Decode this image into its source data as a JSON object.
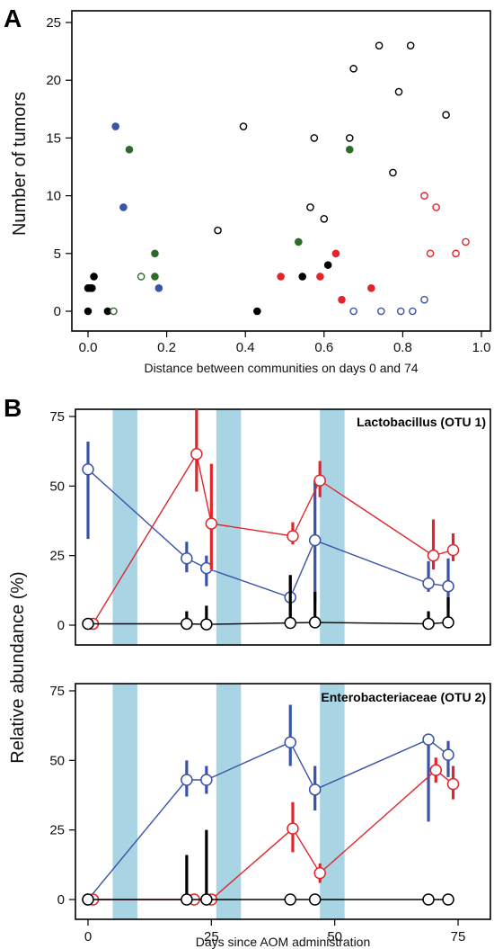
{
  "chart_data": [
    {
      "type": "scatter",
      "panel_label": "A",
      "xlabel": "Distance between communities on days 0 and 74",
      "ylabel": "Number of tumors",
      "xlim": [
        -0.02,
        1.0
      ],
      "ylim": [
        0,
        25
      ],
      "xticks": [
        "0.0",
        "0.2",
        "0.4",
        "0.6",
        "0.8",
        "1.0"
      ],
      "yticks": [
        "0",
        "5",
        "10",
        "15",
        "20",
        "25"
      ],
      "grid": false,
      "colors": {
        "black": "#000000",
        "green": "#2e6b2a",
        "blue": "#3a53a8",
        "red": "#e0262b"
      },
      "points": [
        {
          "x": 0.0,
          "y": 2,
          "color": "black",
          "filled": true
        },
        {
          "x": 0.005,
          "y": 2,
          "color": "black",
          "filled": true
        },
        {
          "x": 0.01,
          "y": 2,
          "color": "black",
          "filled": true
        },
        {
          "x": 0.015,
          "y": 3,
          "color": "black",
          "filled": true
        },
        {
          "x": 0.0,
          "y": 0,
          "color": "black",
          "filled": true
        },
        {
          "x": 0.05,
          "y": 0,
          "color": "black",
          "filled": true
        },
        {
          "x": 0.065,
          "y": 0,
          "color": "green",
          "filled": false
        },
        {
          "x": 0.07,
          "y": 16,
          "color": "blue",
          "filled": true
        },
        {
          "x": 0.09,
          "y": 9,
          "color": "blue",
          "filled": true
        },
        {
          "x": 0.105,
          "y": 14,
          "color": "green",
          "filled": true
        },
        {
          "x": 0.135,
          "y": 3,
          "color": "green",
          "filled": false
        },
        {
          "x": 0.17,
          "y": 5,
          "color": "green",
          "filled": true
        },
        {
          "x": 0.17,
          "y": 3,
          "color": "green",
          "filled": true
        },
        {
          "x": 0.18,
          "y": 2,
          "color": "blue",
          "filled": true
        },
        {
          "x": 0.33,
          "y": 7,
          "color": "black",
          "filled": false
        },
        {
          "x": 0.395,
          "y": 16,
          "color": "black",
          "filled": false
        },
        {
          "x": 0.43,
          "y": 0,
          "color": "black",
          "filled": true
        },
        {
          "x": 0.49,
          "y": 3,
          "color": "red",
          "filled": true
        },
        {
          "x": 0.535,
          "y": 6,
          "color": "green",
          "filled": true
        },
        {
          "x": 0.545,
          "y": 3,
          "color": "black",
          "filled": true
        },
        {
          "x": 0.565,
          "y": 9,
          "color": "black",
          "filled": false
        },
        {
          "x": 0.575,
          "y": 15,
          "color": "black",
          "filled": false
        },
        {
          "x": 0.59,
          "y": 3,
          "color": "red",
          "filled": true
        },
        {
          "x": 0.6,
          "y": 8,
          "color": "black",
          "filled": false
        },
        {
          "x": 0.61,
          "y": 4,
          "color": "black",
          "filled": true
        },
        {
          "x": 0.63,
          "y": 5,
          "color": "red",
          "filled": true
        },
        {
          "x": 0.645,
          "y": 1,
          "color": "red",
          "filled": true
        },
        {
          "x": 0.665,
          "y": 15,
          "color": "black",
          "filled": false
        },
        {
          "x": 0.665,
          "y": 14,
          "color": "green",
          "filled": true
        },
        {
          "x": 0.675,
          "y": 21,
          "color": "black",
          "filled": false
        },
        {
          "x": 0.675,
          "y": 0,
          "color": "blue",
          "filled": false
        },
        {
          "x": 0.72,
          "y": 2,
          "color": "red",
          "filled": true
        },
        {
          "x": 0.74,
          "y": 23,
          "color": "black",
          "filled": false
        },
        {
          "x": 0.745,
          "y": 0,
          "color": "blue",
          "filled": false
        },
        {
          "x": 0.775,
          "y": 12,
          "color": "black",
          "filled": false
        },
        {
          "x": 0.79,
          "y": 19,
          "color": "black",
          "filled": false
        },
        {
          "x": 0.795,
          "y": 0,
          "color": "blue",
          "filled": false
        },
        {
          "x": 0.82,
          "y": 23,
          "color": "black",
          "filled": false
        },
        {
          "x": 0.825,
          "y": 0,
          "color": "blue",
          "filled": false
        },
        {
          "x": 0.855,
          "y": 10,
          "color": "red",
          "filled": false
        },
        {
          "x": 0.855,
          "y": 1,
          "color": "blue",
          "filled": false
        },
        {
          "x": 0.87,
          "y": 5,
          "color": "red",
          "filled": false
        },
        {
          "x": 0.885,
          "y": 9,
          "color": "red",
          "filled": false
        },
        {
          "x": 0.91,
          "y": 17,
          "color": "black",
          "filled": false
        },
        {
          "x": 0.935,
          "y": 5,
          "color": "red",
          "filled": false
        },
        {
          "x": 0.96,
          "y": 6,
          "color": "red",
          "filled": false
        }
      ]
    },
    {
      "type": "line",
      "panel_label": "B",
      "title": "Lactobacillus (OTU 1)",
      "ylabel": "Relative abundance (%)",
      "xlim": [
        -2,
        75
      ],
      "ylim": [
        -4,
        77
      ],
      "xticks": [
        "0",
        "25",
        "50",
        "75"
      ],
      "yticks": [
        "0",
        "25",
        "50",
        "75"
      ],
      "shaded_intervals": [
        [
          5,
          10
        ],
        [
          26,
          31
        ],
        [
          47,
          52
        ]
      ],
      "colors": {
        "blue": "#3a53a8",
        "red": "#e0262b",
        "black": "#000000",
        "shade": "#a8d4e4"
      },
      "series": [
        {
          "color": "blue",
          "x": [
            0,
            20,
            24,
            41,
            46,
            69,
            73
          ],
          "y": [
            56,
            24,
            20.5,
            10,
            30.5,
            15,
            14
          ],
          "err_low": [
            31,
            19,
            14,
            3,
            8,
            12,
            6
          ],
          "err_high": [
            66,
            30,
            25,
            18,
            52,
            23,
            24
          ]
        },
        {
          "color": "red",
          "x": [
            1,
            22,
            25,
            41.5,
            47,
            70,
            74
          ],
          "y": [
            0.5,
            61.5,
            36.5,
            32,
            52,
            25,
            27
          ],
          "err_low": [
            0,
            48,
            20,
            29,
            46,
            20,
            23
          ],
          "err_high": [
            1,
            78,
            58,
            37,
            59,
            38,
            33
          ]
        },
        {
          "color": "black",
          "x": [
            0,
            20,
            24,
            41,
            46,
            69,
            73
          ],
          "y": [
            0.5,
            0.5,
            0.3,
            0.8,
            1,
            0.5,
            1
          ],
          "err_low": [
            0,
            0,
            0,
            0,
            0,
            0,
            0
          ],
          "err_high": [
            1,
            5,
            7,
            18,
            12,
            5,
            10
          ]
        }
      ]
    },
    {
      "type": "line",
      "title": "Enterobacteriaceae (OTU 2)",
      "xlabel": "Days since AOM administration",
      "xlim": [
        -2,
        75
      ],
      "ylim": [
        -4,
        77
      ],
      "xticks": [
        "0",
        "25",
        "50",
        "75"
      ],
      "yticks": [
        "0",
        "25",
        "50",
        "75"
      ],
      "shaded_intervals": [
        [
          5,
          10
        ],
        [
          26,
          31
        ],
        [
          47,
          52
        ]
      ],
      "colors": {
        "blue": "#3a53a8",
        "red": "#e0262b",
        "black": "#000000",
        "shade": "#a8d4e4"
      },
      "series": [
        {
          "color": "blue",
          "x": [
            0,
            20,
            24,
            41,
            46,
            69,
            73
          ],
          "y": [
            0,
            43,
            43,
            56.5,
            39.5,
            57.5,
            52
          ],
          "err_low": [
            0,
            37,
            38,
            48,
            32,
            28,
            44
          ],
          "err_high": [
            0,
            50,
            48,
            70,
            48,
            59,
            57
          ]
        },
        {
          "color": "red",
          "x": [
            1,
            21.5,
            25,
            41.5,
            47,
            70.5,
            74
          ],
          "y": [
            0,
            0,
            0,
            25.5,
            9.5,
            46.5,
            41.5
          ],
          "err_low": [
            0,
            0,
            0,
            17,
            6,
            42,
            36
          ],
          "err_high": [
            0,
            0,
            0,
            35,
            13,
            51,
            48
          ]
        },
        {
          "color": "black",
          "x": [
            0,
            20,
            24,
            41,
            46,
            69,
            73
          ],
          "y": [
            0,
            0,
            0,
            0,
            0,
            0,
            0
          ],
          "err_low": [
            0,
            0,
            0,
            0,
            0,
            0,
            0
          ],
          "err_high": [
            0,
            16,
            25,
            0,
            0,
            0,
            0
          ]
        }
      ]
    }
  ]
}
